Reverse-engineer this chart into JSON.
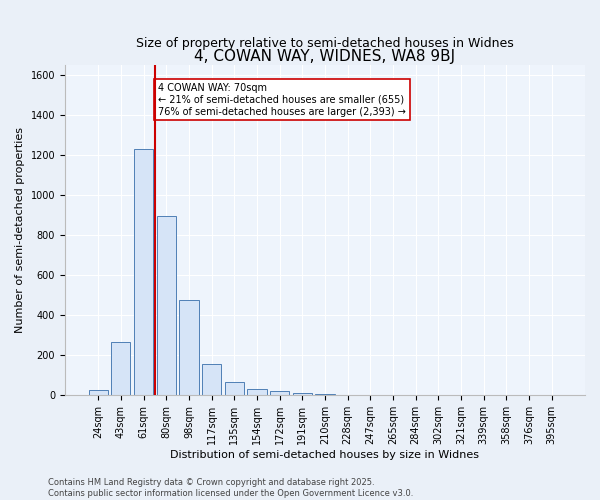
{
  "title": "4, COWAN WAY, WIDNES, WA8 9BJ",
  "subtitle": "Size of property relative to semi-detached houses in Widnes",
  "xlabel": "Distribution of semi-detached houses by size in Widnes",
  "ylabel": "Number of semi-detached properties",
  "bar_labels": [
    "24sqm",
    "43sqm",
    "61sqm",
    "80sqm",
    "98sqm",
    "117sqm",
    "135sqm",
    "154sqm",
    "172sqm",
    "191sqm",
    "210sqm",
    "228sqm",
    "247sqm",
    "265sqm",
    "284sqm",
    "302sqm",
    "321sqm",
    "339sqm",
    "358sqm",
    "376sqm",
    "395sqm"
  ],
  "bar_values": [
    28,
    265,
    1230,
    895,
    475,
    155,
    65,
    30,
    20,
    10,
    8,
    0,
    0,
    0,
    0,
    0,
    0,
    0,
    0,
    0,
    0
  ],
  "bar_color_fill": "#d6e4f7",
  "bar_color_edge": "#4f7fb5",
  "vline_index": 2,
  "vline_color": "#cc0000",
  "annotation_text": "4 COWAN WAY: 70sqm\n← 21% of semi-detached houses are smaller (655)\n76% of semi-detached houses are larger (2,393) →",
  "annotation_box_color": "#cc0000",
  "ylim": [
    0,
    1650
  ],
  "yticks": [
    0,
    200,
    400,
    600,
    800,
    1000,
    1200,
    1400,
    1600
  ],
  "footer_line1": "Contains HM Land Registry data © Crown copyright and database right 2025.",
  "footer_line2": "Contains public sector information licensed under the Open Government Licence v3.0.",
  "bg_color": "#eaf0f8",
  "plot_bg_color": "#eef4fc",
  "grid_color": "#ffffff",
  "title_fontsize": 11,
  "subtitle_fontsize": 9,
  "axis_label_fontsize": 8,
  "tick_fontsize": 7,
  "annotation_fontsize": 7,
  "footer_fontsize": 6
}
